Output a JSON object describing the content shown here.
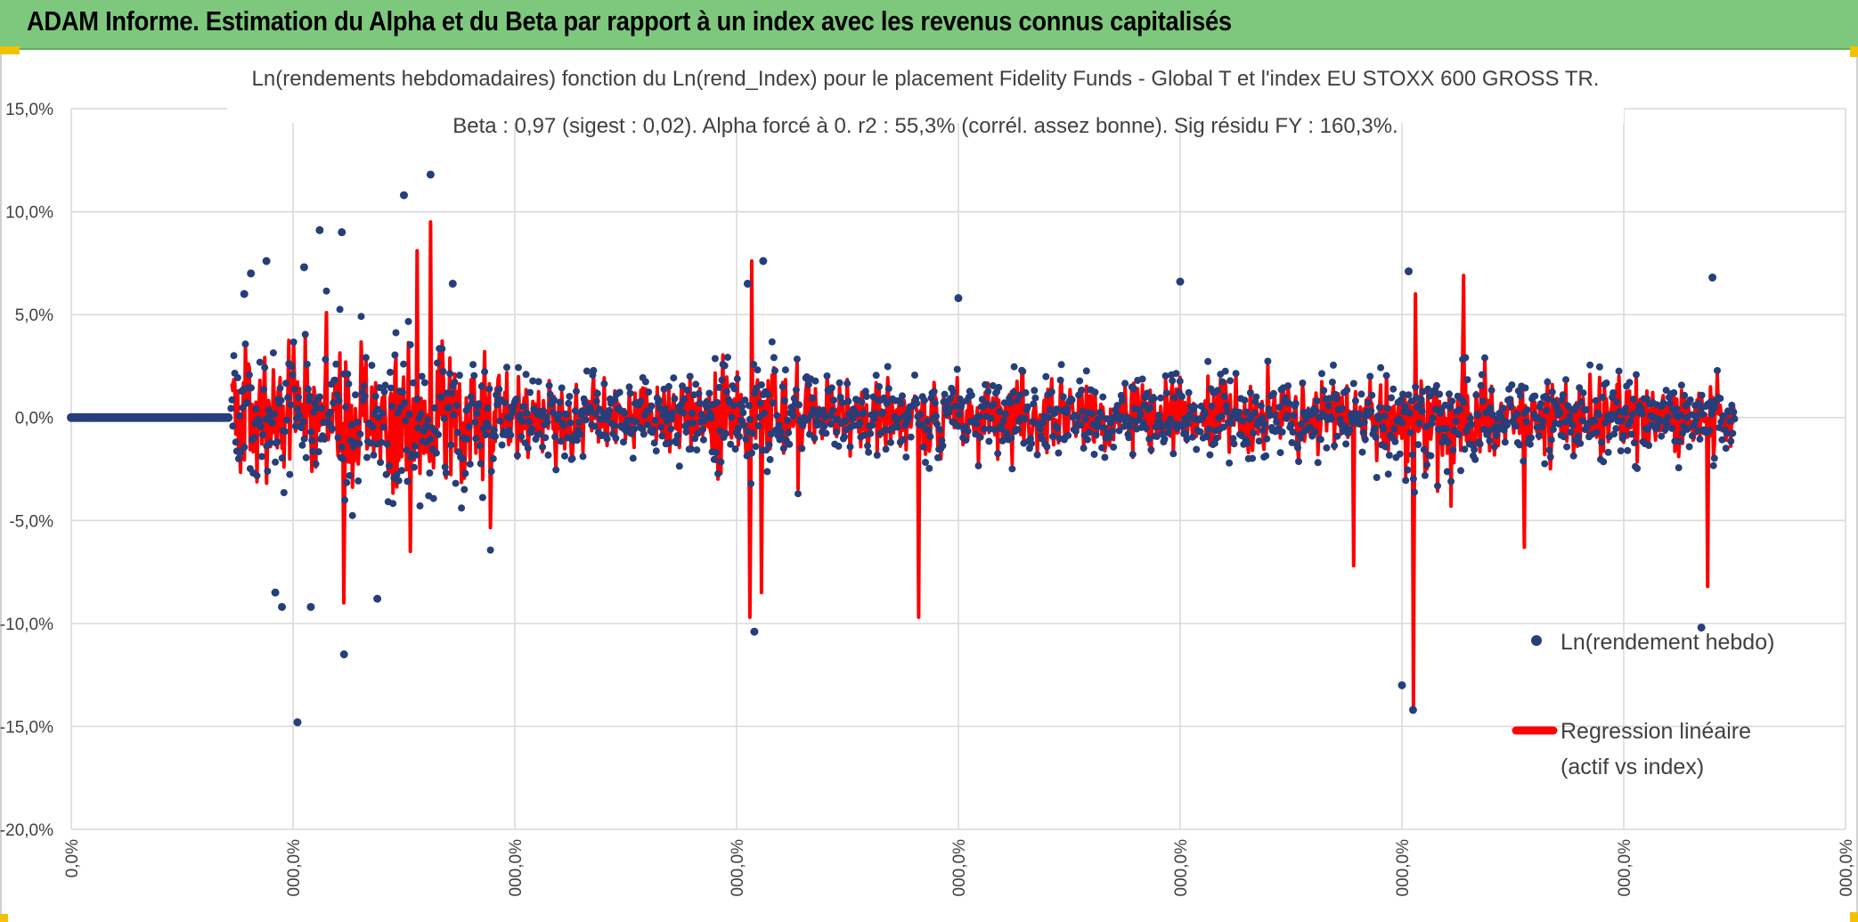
{
  "header": {
    "title": "ADAM Informe. Estimation du Alpha et du Beta par rapport à un index avec les revenus connus capitalisés"
  },
  "chart_data": {
    "type": "scatter",
    "title": "Ln(rendements hebdomadaires) fonction du Ln(rend_Index) pour le placement Fidelity Funds - Global T et l'index EU STOXX 600 GROSS TR.",
    "subtitle": "Beta : 0,97 (sigest : 0,02). Alpha forcé à 0. r2 : 55,3% (corrél. assez bonne). Sig résidu FY : 160,3%.",
    "ylim": [
      -0.2,
      0.15
    ],
    "y_ticks": [
      "15,0%",
      "10,0%",
      "5,0%",
      "0,0%",
      "-5,0%",
      "-10,0%",
      "-15,0%",
      "-20,0%"
    ],
    "y_tick_values": [
      0.15,
      0.1,
      0.05,
      0.0,
      -0.05,
      -0.1,
      -0.15,
      -0.2
    ],
    "xlim": [
      0,
      8
    ],
    "x_ticks": [
      "0,0%",
      "000,0%",
      "000,0%",
      "000,0%",
      "000,0%",
      "000,0%",
      "000,0%",
      "000,0%",
      "000,0%"
    ],
    "x_tick_values": [
      0,
      1,
      2,
      3,
      4,
      5,
      6,
      7,
      8
    ],
    "grid": true,
    "legend_position": "right",
    "series": [
      {
        "name": "Ln(rendement hebdo)",
        "kind": "points",
        "color": "#263f7a",
        "zero_until": 0.72,
        "data_start": 0.72,
        "data_end": 7.5,
        "typical_spread": 0.018,
        "notable_points": [
          {
            "x": 0.78,
            "y": 0.06
          },
          {
            "x": 0.81,
            "y": 0.07
          },
          {
            "x": 0.88,
            "y": 0.076
          },
          {
            "x": 0.92,
            "y": -0.085
          },
          {
            "x": 0.95,
            "y": -0.092
          },
          {
            "x": 1.02,
            "y": -0.148
          },
          {
            "x": 1.05,
            "y": 0.073
          },
          {
            "x": 1.12,
            "y": 0.091
          },
          {
            "x": 1.08,
            "y": -0.092
          },
          {
            "x": 1.22,
            "y": 0.09
          },
          {
            "x": 1.23,
            "y": -0.115
          },
          {
            "x": 1.38,
            "y": -0.088
          },
          {
            "x": 1.5,
            "y": 0.108
          },
          {
            "x": 1.62,
            "y": 0.118
          },
          {
            "x": 1.72,
            "y": 0.065
          },
          {
            "x": 3.05,
            "y": 0.065
          },
          {
            "x": 3.12,
            "y": 0.076
          },
          {
            "x": 3.08,
            "y": -0.104
          },
          {
            "x": 4.0,
            "y": 0.058
          },
          {
            "x": 5.0,
            "y": 0.066
          },
          {
            "x": 6.0,
            "y": -0.13
          },
          {
            "x": 6.03,
            "y": 0.071
          },
          {
            "x": 6.05,
            "y": -0.142
          },
          {
            "x": 7.4,
            "y": 0.068
          },
          {
            "x": 7.35,
            "y": -0.102
          }
        ]
      },
      {
        "name": "Regression linéaire (actif vs index)",
        "kind": "line",
        "color": "#ff0000",
        "data_start": 0.72,
        "data_end": 7.5,
        "typical_spread": 0.015,
        "notable_points": [
          {
            "x": 1.56,
            "y": 0.081
          },
          {
            "x": 1.62,
            "y": 0.095
          },
          {
            "x": 1.53,
            "y": -0.065
          },
          {
            "x": 1.23,
            "y": -0.09
          },
          {
            "x": 3.07,
            "y": 0.076
          },
          {
            "x": 3.06,
            "y": -0.097
          },
          {
            "x": 3.11,
            "y": -0.085
          },
          {
            "x": 3.82,
            "y": -0.097
          },
          {
            "x": 6.05,
            "y": -0.14
          },
          {
            "x": 6.06,
            "y": 0.06
          },
          {
            "x": 6.28,
            "y": 0.069
          },
          {
            "x": 6.22,
            "y": -0.043
          },
          {
            "x": 7.38,
            "y": -0.082
          },
          {
            "x": 5.78,
            "y": -0.072
          },
          {
            "x": 6.55,
            "y": -0.063
          }
        ]
      }
    ],
    "legend": [
      {
        "label": "Ln(rendement hebdo)",
        "marker": "dot"
      },
      {
        "label_lines": [
          "Regression linéaire",
          "(actif vs index)"
        ],
        "marker": "line"
      }
    ]
  }
}
